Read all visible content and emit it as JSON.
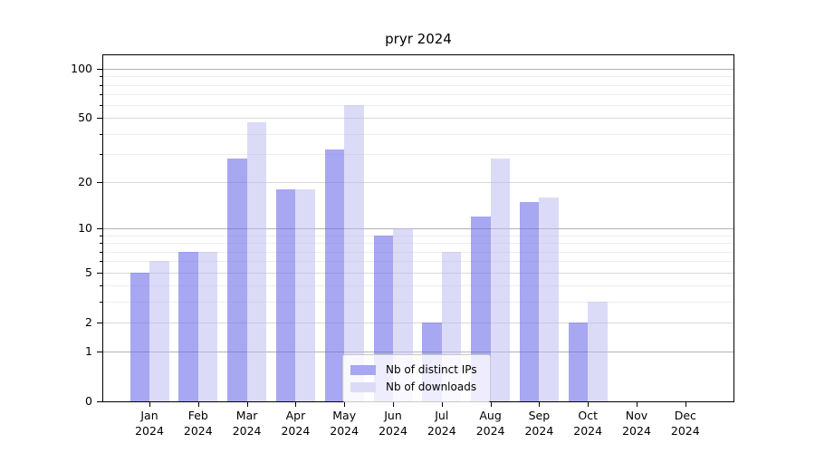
{
  "chart_data": {
    "type": "bar",
    "title": "pryr 2024",
    "categories": [
      {
        "month": "Jan",
        "year": "2024"
      },
      {
        "month": "Feb",
        "year": "2024"
      },
      {
        "month": "Mar",
        "year": "2024"
      },
      {
        "month": "Apr",
        "year": "2024"
      },
      {
        "month": "May",
        "year": "2024"
      },
      {
        "month": "Jun",
        "year": "2024"
      },
      {
        "month": "Jul",
        "year": "2024"
      },
      {
        "month": "Aug",
        "year": "2024"
      },
      {
        "month": "Sep",
        "year": "2024"
      },
      {
        "month": "Oct",
        "year": "2024"
      },
      {
        "month": "Nov",
        "year": "2024"
      },
      {
        "month": "Dec",
        "year": "2024"
      }
    ],
    "series": [
      {
        "name": "Nb of distinct IPs",
        "values": [
          5,
          7,
          28,
          18,
          32,
          9,
          2,
          12,
          15,
          2,
          0,
          0
        ],
        "fill": "rgba(108,108,233,0.6)",
        "legend_color": "#a7a7f2"
      },
      {
        "name": "Nb of downloads",
        "values": [
          6,
          7,
          47,
          18,
          60,
          10,
          7,
          28,
          16,
          3,
          0,
          0
        ],
        "fill": "rgba(183,183,241,0.5)",
        "legend_color": "#dbdbf8"
      }
    ],
    "y_scale": "log1p",
    "y_ticks": [
      100,
      50,
      20,
      10,
      5,
      2,
      1,
      0
    ],
    "ylim": [
      0,
      121
    ],
    "xlabel": "",
    "ylabel": "",
    "legend_position": "bottom-center",
    "grid": {
      "major": [
        1,
        10,
        100
      ],
      "mid": [
        2,
        5,
        20,
        50
      ],
      "minor": [
        3,
        4,
        6,
        7,
        8,
        9,
        30,
        40,
        60,
        70,
        80,
        90
      ]
    },
    "colors": {
      "grid_major": "#b2b2b2",
      "grid_mid": "#d9d9d9",
      "grid_minor": "#ededed",
      "axis": "#000000"
    }
  }
}
